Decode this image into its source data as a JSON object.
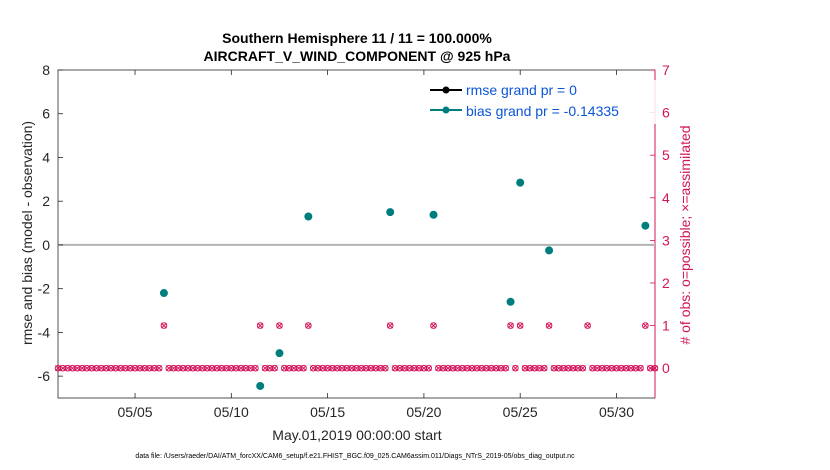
{
  "titles": {
    "line1": "Southern Hemisphere 11 / 11 = 100.000%",
    "line2": "AIRCRAFT_V_WIND_COMPONENT @ 925 hPa"
  },
  "axes": {
    "ylabel_left": "rmse and bias (model - observation)",
    "ylabel_right": "# of obs: o=possible; ×=assimilated",
    "xlabel": "May.01,2019 00:00:00 start"
  },
  "footer": "data file: /Users/raeder/DAI/ATM_forcXX/CAM6_setup/f.e21.FHIST_BGC.f09_025.CAM6assim.011/Diags_NTrS_2019-05/obs_diag_output.nc",
  "colors": {
    "bias": "#007d7d",
    "rmse": "#000000",
    "obs": "#d4145a",
    "legend_text": "#0b55d6",
    "zero_line": "#b3b3b3"
  },
  "chart_data": {
    "type": "scatter",
    "xlim": [
      1.0,
      32.0
    ],
    "ylim_left": [
      -7,
      8
    ],
    "ylim_right": [
      -0.7,
      7
    ],
    "x_ticks": [
      5,
      10,
      15,
      20,
      25,
      30
    ],
    "x_tick_labels": [
      "05/05",
      "05/10",
      "05/15",
      "05/20",
      "05/25",
      "05/30"
    ],
    "y_ticks_left": [
      -6,
      -4,
      -2,
      0,
      2,
      4,
      6,
      8
    ],
    "y_tick_labels_left": [
      "-6",
      "-4",
      "-2",
      "0",
      "2",
      "4",
      "6",
      "8"
    ],
    "y_ticks_right": [
      0,
      1,
      2,
      3,
      4,
      5,
      6,
      7
    ],
    "y_tick_labels_right": [
      "0",
      "1",
      "2",
      "3",
      "4",
      "5",
      "6",
      "7"
    ],
    "grid": false,
    "legend_placement": "top-right",
    "series": [
      {
        "name": "rmse grand pr = 0",
        "axis": "left",
        "marker": "filled-circle-line",
        "points": []
      },
      {
        "name": "bias grand pr = -0.14335",
        "axis": "left",
        "marker": "filled-circle",
        "points": [
          {
            "x": 6.5,
            "y": -2.2
          },
          {
            "x": 11.5,
            "y": -6.45
          },
          {
            "x": 12.5,
            "y": -4.95
          },
          {
            "x": 14.0,
            "y": 1.3
          },
          {
            "x": 18.25,
            "y": 1.5
          },
          {
            "x": 20.5,
            "y": 1.38
          },
          {
            "x": 24.5,
            "y": -2.6
          },
          {
            "x": 25.0,
            "y": 2.85
          },
          {
            "x": 26.5,
            "y": -0.25
          },
          {
            "x": 31.5,
            "y": 0.88
          }
        ]
      },
      {
        "name": "possible",
        "axis": "right",
        "marker": "open-circle",
        "x_start": 1.0,
        "x_step": 0.25,
        "x_end": 32.0,
        "default_y": 0,
        "nonzero": [
          {
            "x": 6.5,
            "y": 1
          },
          {
            "x": 11.5,
            "y": 1
          },
          {
            "x": 12.5,
            "y": 1
          },
          {
            "x": 14.0,
            "y": 1
          },
          {
            "x": 18.25,
            "y": 1
          },
          {
            "x": 20.5,
            "y": 1
          },
          {
            "x": 24.5,
            "y": 1
          },
          {
            "x": 25.0,
            "y": 1
          },
          {
            "x": 26.5,
            "y": 1
          },
          {
            "x": 28.5,
            "y": 1
          },
          {
            "x": 31.5,
            "y": 1
          }
        ]
      },
      {
        "name": "assimilated",
        "axis": "right",
        "marker": "x",
        "same_as": "possible"
      }
    ]
  }
}
